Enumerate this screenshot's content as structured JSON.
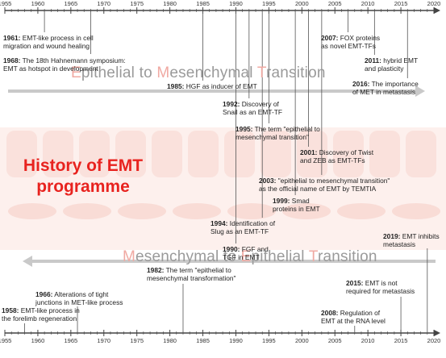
{
  "title": {
    "line1": "History of EMT",
    "line2": "programme"
  },
  "band_top": {
    "parts": [
      {
        "t": "E",
        "accent": true
      },
      {
        "t": "pithelial to ",
        "accent": false
      },
      {
        "t": "M",
        "accent": true
      },
      {
        "t": "esenchymal ",
        "accent": false
      },
      {
        "t": "T",
        "accent": true
      },
      {
        "t": "ransition",
        "accent": false
      }
    ]
  },
  "band_bottom": {
    "parts": [
      {
        "t": "M",
        "accent": true
      },
      {
        "t": "esenchymal to ",
        "accent": false
      },
      {
        "t": "E",
        "accent": true
      },
      {
        "t": "pithelial ",
        "accent": false
      },
      {
        "t": "T",
        "accent": true
      },
      {
        "t": "ransition",
        "accent": false
      }
    ]
  },
  "axis": {
    "years": [
      "1955",
      "1960",
      "1965",
      "1970",
      "1975",
      "1980",
      "1985",
      "1990",
      "1995",
      "2000",
      "2005",
      "2010",
      "2015",
      "2020"
    ]
  },
  "colors": {
    "axis": "#444444",
    "title": "#e8231f",
    "accent": "#f0a9a2",
    "band": "#fbe3df",
    "arrow": "#c9c9c9"
  },
  "emt_events": [
    {
      "year": 1961,
      "label": "1961:",
      "text": [
        "EMT-like process in cell",
        "migration and  wound healing"
      ]
    },
    {
      "year": 1968,
      "label": "1968:",
      "text": [
        "The 18th Hahnemann symposium:",
        "EMT as hotspot in development"
      ]
    },
    {
      "year": 1985,
      "label": "1985:",
      "text": [
        "HGF as inducer of EMT"
      ]
    },
    {
      "year": 1992,
      "label": "1992:",
      "text": [
        "Discovery of",
        "Snail as an EMT-TF"
      ]
    },
    {
      "year": 1995,
      "label": "1995:",
      "text": [
        "The term \"epithelial to",
        "mesenchymal transition\""
      ]
    },
    {
      "year": 2001,
      "label": "2001:",
      "text": [
        "Discovery of Twist",
        "and ZEB as EMT-TFs"
      ]
    },
    {
      "year": 2003,
      "label": "2003:",
      "text": [
        "\"epithelial to mesenchymal transition\"",
        "as the official name of EMT by TEMTIA"
      ]
    },
    {
      "year": 1999,
      "label": "1999:",
      "text": [
        "Smad",
        "proteins in EMT"
      ]
    },
    {
      "year": 1994,
      "label": "1994:",
      "text": [
        "Identification of",
        "Slug as an EMT-TF"
      ]
    },
    {
      "year": 1990,
      "label": "1990:",
      "text": [
        "FGF and",
        "TGF in EMT"
      ]
    },
    {
      "year": 2007,
      "label": "2007:",
      "text": [
        "FOX proteins",
        "as novel EMT-TFs"
      ]
    },
    {
      "year": 2011,
      "label": "2011:",
      "text": [
        "hybrid EMT",
        "and plasticity"
      ]
    },
    {
      "year": 2016,
      "label": "2016:",
      "text": [
        "The importance",
        "of MET in metastasis"
      ]
    }
  ],
  "met_events": [
    {
      "year": 2019,
      "label": "2019:",
      "text": [
        "EMT inhibits",
        "metastasis"
      ]
    },
    {
      "year": 1982,
      "label": "1982:",
      "text": [
        "The term \"epithelial to",
        "mesenchymal transformation\""
      ]
    },
    {
      "year": 1966,
      "label": "1966:",
      "text": [
        "Alterations of tight",
        "junctions in MET-like process"
      ]
    },
    {
      "year": 2015,
      "label": "2015:",
      "text": [
        "EMT is not",
        "required for metastasis"
      ]
    },
    {
      "year": 1958,
      "label": "1958:",
      "text": [
        "EMT-like process in",
        "the forelimb regeneration"
      ]
    },
    {
      "year": 2008,
      "label": "2008:",
      "text": [
        "Regulation of",
        "EMT at the RNA level"
      ]
    }
  ]
}
